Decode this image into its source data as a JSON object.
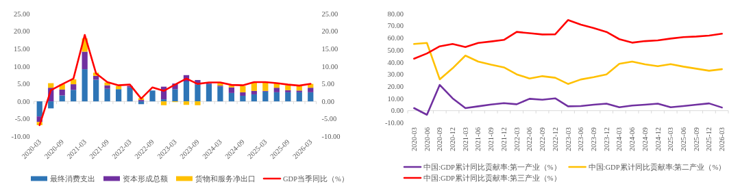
{
  "chart_data": [
    {
      "type": "bar",
      "stacked": true,
      "legend": "bottom",
      "categories": [
        "2020-03",
        null,
        "2020-09",
        null,
        "2021-03",
        null,
        "2021-09",
        null,
        "2022-03",
        null,
        "2022-09",
        null,
        "2023-03",
        null,
        "2023-09",
        null,
        "2024-03",
        null,
        "2024-09",
        null,
        "2025-03",
        null,
        "2025-09",
        null,
        "2026-03"
      ],
      "ylim": [
        -10,
        25
      ],
      "yticks": [
        {
          "value": -10,
          "label": "-10.00"
        },
        {
          "value": -5,
          "label": "-5.00"
        },
        {
          "value": 0,
          "label": "0.00"
        },
        {
          "value": 5,
          "label": "5.00"
        },
        {
          "value": 10,
          "label": "10.00"
        },
        {
          "value": 15,
          "label": "15.00"
        },
        {
          "value": 20,
          "label": "20.00"
        },
        {
          "value": 25,
          "label": "25.00"
        }
      ],
      "y2lim": [
        -10,
        25
      ],
      "y2ticks": [
        {
          "value": -10,
          "label": "-10.00"
        },
        {
          "value": -5,
          "label": "-5.00"
        },
        {
          "value": 0,
          "label": "0.00"
        },
        {
          "value": 5,
          "label": "5.00"
        },
        {
          "value": 10,
          "label": "10.00"
        },
        {
          "value": 15,
          "label": "15.00"
        },
        {
          "value": 20,
          "label": "20.00"
        },
        {
          "value": 25,
          "label": "25.00"
        }
      ],
      "series": [
        {
          "name": "最终消费支出",
          "color": "#2e75b6",
          "values": [
            -4.3,
            -2.0,
            1.7,
            3.3,
            9.2,
            6.2,
            3.6,
            3.5,
            4.0,
            -0.8,
            3.1,
            0.6,
            3.5,
            5.7,
            4.8,
            4.9,
            4.2,
            2.4,
            1.6,
            2.0,
            2.8,
            2.6,
            2.6,
            2.6,
            2.6
          ]
        },
        {
          "name": "资本形成总额",
          "color": "#7030a0",
          "values": [
            -1.6,
            3.9,
            1.7,
            1.6,
            5.0,
            1.1,
            1.0,
            null,
            0.4,
            0.4,
            null,
            3.6,
            1.6,
            1.8,
            1.3,
            0.2,
            0.3,
            1.6,
            1.0,
            1.0,
            0.2,
            1.3,
            0.6,
            0.5,
            1.3
          ]
        },
        {
          "name": "货物和服务净出口",
          "color": "#ffc000",
          "values": [
            -0.9,
            1.3,
            1.5,
            1.4,
            3.8,
            0.9,
            0.8,
            0.9,
            null,
            0.5,
            null,
            -1.1,
            -0.2,
            -1.0,
            -1.1,
            null,
            0.7,
            0.5,
            1.8,
            2.5,
            2.4,
            1.2,
            1.4,
            1.3,
            1.1
          ]
        },
        {
          "name": "GDP当季同比（%）",
          "type": "line",
          "color": "#ff0000",
          "values": [
            -6.8,
            3.2,
            4.9,
            6.5,
            19.0,
            8.0,
            5.5,
            4.6,
            4.8,
            0.8,
            4.0,
            3.0,
            4.8,
            6.5,
            5.0,
            5.4,
            5.4,
            4.7,
            4.6,
            5.5,
            5.5,
            5.2,
            4.8,
            4.5,
            5.0
          ]
        }
      ]
    },
    {
      "type": "line",
      "legend": "bottom",
      "categories": [
        "2020-03",
        "2020-06",
        "2020-09",
        "2020-12",
        "2021-03",
        "2021-06",
        "2021-09",
        "2021-12",
        "2022-03",
        "2022-06",
        "2022-09",
        "2022-12",
        "2023-03",
        "2023-06",
        "2023-09",
        "2023-12",
        "2024-03",
        "2024-06",
        "2024-09",
        "2024-12",
        "2025-03",
        "2025-06",
        "2025-09",
        "2025-12",
        "2026-03"
      ],
      "ylim": [
        -10,
        80
      ],
      "yticks": [
        {
          "value": -10,
          "label": "-10.00"
        },
        {
          "value": 0,
          "label": "0.00"
        },
        {
          "value": 10,
          "label": "10.00"
        },
        {
          "value": 20,
          "label": "20.00"
        },
        {
          "value": 30,
          "label": "30.00"
        },
        {
          "value": 40,
          "label": "40.00"
        },
        {
          "value": 50,
          "label": "50.00"
        },
        {
          "value": 60,
          "label": "60.00"
        },
        {
          "value": 70,
          "label": "70.00"
        },
        {
          "value": 80,
          "label": "80.00"
        }
      ],
      "series": [
        {
          "name": "中国:GDP累计同比贡献率:第一产业（%）",
          "color": "#7030a0",
          "values": [
            2.1,
            -3.4,
            21.3,
            10.2,
            2.1,
            3.6,
            5.1,
            6.2,
            5.3,
            9.8,
            9.0,
            10.2,
            3.6,
            3.8,
            4.9,
            5.8,
            2.8,
            4.2,
            4.9,
            5.8,
            2.8,
            3.8,
            4.9,
            6.0,
            2.6
          ]
        },
        {
          "name": "中国:GDP累计同比贡献率:第二产业（%）",
          "color": "#ffc000",
          "values": [
            55.1,
            56.0,
            25.9,
            35.0,
            45.5,
            40.6,
            38.0,
            35.8,
            30.0,
            26.6,
            28.5,
            27.2,
            22.1,
            25.8,
            27.7,
            30.0,
            38.7,
            40.6,
            38.3,
            36.8,
            38.5,
            36.4,
            34.7,
            33.0,
            34.3
          ]
        },
        {
          "name": "中国:GDP累计同比贡献率:第三产业（%）",
          "color": "#ff0000",
          "values": [
            43.0,
            47.3,
            53.2,
            55.1,
            52.6,
            56.0,
            57.2,
            58.5,
            65.1,
            64.0,
            63.0,
            63.1,
            74.9,
            71.1,
            68.3,
            65.1,
            59.1,
            56.2,
            57.5,
            58.1,
            59.6,
            60.8,
            61.3,
            62.1,
            63.6
          ]
        }
      ]
    }
  ]
}
